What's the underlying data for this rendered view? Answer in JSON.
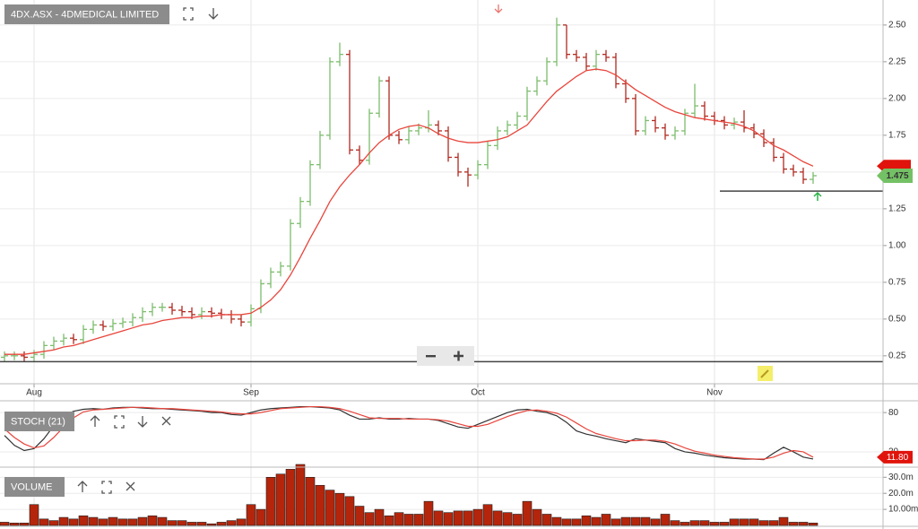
{
  "chart_data": [
    {
      "type": "ohlc",
      "title": "4DX.ASX - 4DMEDICAL LIMITED",
      "categories": [
        null,
        null,
        null,
        "Aug",
        null,
        null,
        null,
        null,
        null,
        null,
        null,
        null,
        null,
        null,
        null,
        null,
        null,
        null,
        null,
        null,
        null,
        null,
        null,
        null,
        null,
        "Sep",
        null,
        null,
        null,
        null,
        null,
        null,
        null,
        null,
        null,
        null,
        null,
        null,
        null,
        null,
        null,
        null,
        null,
        null,
        null,
        null,
        null,
        null,
        "Oct",
        null,
        null,
        null,
        null,
        null,
        null,
        null,
        null,
        null,
        null,
        null,
        null,
        null,
        null,
        null,
        null,
        null,
        null,
        null,
        null,
        null,
        null,
        null,
        "Nov",
        null,
        null,
        null,
        null,
        null,
        null,
        null,
        null,
        null,
        null
      ],
      "open": [
        0.24,
        0.25,
        0.25,
        0.24,
        0.26,
        0.32,
        0.35,
        0.37,
        0.36,
        0.43,
        0.46,
        0.45,
        0.47,
        0.48,
        0.51,
        0.55,
        0.58,
        0.58,
        0.56,
        0.55,
        0.53,
        0.55,
        0.54,
        0.53,
        0.5,
        0.48,
        0.57,
        0.74,
        0.82,
        0.86,
        1.15,
        1.3,
        1.55,
        1.75,
        2.25,
        2.3,
        1.65,
        1.58,
        1.9,
        2.12,
        1.75,
        1.72,
        1.78,
        1.8,
        1.82,
        1.78,
        1.6,
        1.5,
        1.48,
        1.55,
        1.68,
        1.78,
        1.82,
        1.88,
        2.05,
        2.12,
        2.25,
        2.5,
        2.3,
        2.28,
        2.22,
        2.3,
        2.28,
        2.1,
        2.0,
        1.78,
        1.85,
        1.8,
        1.75,
        1.78,
        1.9,
        1.95,
        1.88,
        1.85,
        1.82,
        1.84,
        1.8,
        1.76,
        1.7,
        1.6,
        1.52,
        1.5,
        1.45
      ],
      "high": [
        0.28,
        0.28,
        0.28,
        0.29,
        0.35,
        0.38,
        0.4,
        0.4,
        0.46,
        0.49,
        0.49,
        0.5,
        0.51,
        0.54,
        0.58,
        0.61,
        0.61,
        0.61,
        0.59,
        0.58,
        0.58,
        0.58,
        0.57,
        0.56,
        0.53,
        0.6,
        0.77,
        0.85,
        0.89,
        1.18,
        1.33,
        1.58,
        1.78,
        2.28,
        2.38,
        2.33,
        1.68,
        1.93,
        2.15,
        2.15,
        1.78,
        1.81,
        1.83,
        1.92,
        1.85,
        1.81,
        1.63,
        1.53,
        1.58,
        1.71,
        1.81,
        1.85,
        1.91,
        2.08,
        2.15,
        2.28,
        2.55,
        2.5,
        2.33,
        2.31,
        2.33,
        2.33,
        2.31,
        2.13,
        2.03,
        1.88,
        1.88,
        1.83,
        1.81,
        1.93,
        2.1,
        1.98,
        1.91,
        1.88,
        1.87,
        1.92,
        1.83,
        1.79,
        1.73,
        1.63,
        1.55,
        1.53,
        1.5
      ],
      "low": [
        0.21,
        0.22,
        0.21,
        0.21,
        0.23,
        0.29,
        0.32,
        0.33,
        0.33,
        0.4,
        0.42,
        0.42,
        0.44,
        0.45,
        0.48,
        0.52,
        0.55,
        0.53,
        0.52,
        0.5,
        0.5,
        0.51,
        0.5,
        0.47,
        0.45,
        0.45,
        0.54,
        0.71,
        0.79,
        0.83,
        1.12,
        1.27,
        1.52,
        1.72,
        2.22,
        1.62,
        1.55,
        1.55,
        1.87,
        1.72,
        1.69,
        1.69,
        1.75,
        1.77,
        1.75,
        1.57,
        1.47,
        1.4,
        1.45,
        1.52,
        1.65,
        1.75,
        1.79,
        1.85,
        2.02,
        2.09,
        2.22,
        2.27,
        2.25,
        2.19,
        2.19,
        2.25,
        2.07,
        1.97,
        1.75,
        1.75,
        1.77,
        1.72,
        1.72,
        1.75,
        1.87,
        1.85,
        1.82,
        1.79,
        1.79,
        1.77,
        1.73,
        1.67,
        1.57,
        1.49,
        1.47,
        1.42,
        1.42
      ],
      "close": [
        0.25,
        0.25,
        0.24,
        0.26,
        0.32,
        0.35,
        0.37,
        0.36,
        0.43,
        0.46,
        0.45,
        0.47,
        0.48,
        0.51,
        0.55,
        0.58,
        0.58,
        0.56,
        0.55,
        0.53,
        0.55,
        0.54,
        0.53,
        0.5,
        0.48,
        0.57,
        0.74,
        0.82,
        0.86,
        1.15,
        1.3,
        1.55,
        1.75,
        2.25,
        2.3,
        1.65,
        1.58,
        1.9,
        2.12,
        1.75,
        1.72,
        1.78,
        1.8,
        1.82,
        1.78,
        1.6,
        1.5,
        1.48,
        1.55,
        1.68,
        1.78,
        1.82,
        1.88,
        2.05,
        2.12,
        2.25,
        2.5,
        2.3,
        2.28,
        2.22,
        2.3,
        2.28,
        2.1,
        2.0,
        1.78,
        1.85,
        1.8,
        1.75,
        1.78,
        1.9,
        1.95,
        1.88,
        1.85,
        1.82,
        1.84,
        1.8,
        1.76,
        1.7,
        1.6,
        1.52,
        1.5,
        1.45,
        1.475
      ],
      "up_color": "#7dbd6d",
      "down_color": "#b0281f",
      "ma": {
        "color": "#e8453c",
        "values": [
          0.26,
          0.26,
          0.26,
          0.27,
          0.28,
          0.29,
          0.31,
          0.32,
          0.34,
          0.36,
          0.38,
          0.4,
          0.42,
          0.44,
          0.46,
          0.47,
          0.49,
          0.5,
          0.51,
          0.51,
          0.52,
          0.52,
          0.53,
          0.53,
          0.53,
          0.54,
          0.58,
          0.63,
          0.7,
          0.8,
          0.92,
          1.05,
          1.17,
          1.3,
          1.4,
          1.48,
          1.55,
          1.63,
          1.7,
          1.75,
          1.79,
          1.81,
          1.82,
          1.8,
          1.76,
          1.73,
          1.71,
          1.7,
          1.7,
          1.71,
          1.72,
          1.74,
          1.78,
          1.82,
          1.9,
          1.98,
          2.05,
          2.1,
          2.15,
          2.19,
          2.2,
          2.19,
          2.16,
          2.11,
          2.06,
          2.02,
          1.98,
          1.94,
          1.91,
          1.89,
          1.87,
          1.86,
          1.85,
          1.84,
          1.83,
          1.81,
          1.78,
          1.73,
          1.68,
          1.65,
          1.61,
          1.57,
          1.54
        ]
      },
      "hlines": [
        {
          "value": 0.21,
          "from": 0
        },
        {
          "value": 1.37,
          "from": 73
        }
      ],
      "ylim": [
        0.06,
        2.67
      ],
      "yticks": [
        0.25,
        {
          "value": 0.5,
          "label": "0.50"
        },
        0.75,
        {
          "value": 1,
          "label": "1.00"
        },
        1.25,
        {
          "value": 1.5,
          "label": "1.50"
        },
        1.75,
        {
          "value": 2,
          "label": "2.00"
        },
        2.25,
        {
          "value": 2.5,
          "label": "2.50"
        }
      ],
      "grid": true
    },
    {
      "type": "line",
      "title": "STOCH (21)",
      "series": [
        {
          "color": "#333333",
          "values": [
            45,
            30,
            22,
            25,
            40,
            60,
            75,
            82,
            85,
            86,
            85,
            87,
            88,
            88,
            87,
            86,
            86,
            85,
            84,
            83,
            82,
            80,
            80,
            77,
            76,
            80,
            84,
            86,
            87,
            88,
            89,
            89,
            88,
            87,
            84,
            76,
            70,
            70,
            72,
            70,
            70,
            71,
            70,
            70,
            68,
            63,
            58,
            56,
            62,
            68,
            74,
            80,
            84,
            85,
            82,
            80,
            75,
            65,
            52,
            47,
            44,
            40,
            37,
            34,
            40,
            38,
            36,
            34,
            25,
            20,
            18,
            15,
            13,
            11,
            10,
            9,
            9,
            8,
            18,
            27,
            20,
            12,
            9
          ]
        },
        {
          "color": "#e8453c",
          "values": [
            55,
            42,
            32,
            26,
            29,
            42,
            58,
            72,
            81,
            84,
            85,
            86,
            87,
            88,
            88,
            87,
            86,
            86,
            85,
            84,
            83,
            82,
            81,
            79,
            78,
            78,
            80,
            83,
            86,
            87,
            88,
            89,
            89,
            88,
            86,
            82,
            77,
            72,
            71,
            71,
            71,
            70,
            70,
            70,
            69,
            67,
            63,
            59,
            59,
            62,
            68,
            74,
            79,
            83,
            84,
            82,
            79,
            73,
            64,
            55,
            48,
            44,
            40,
            37,
            37,
            38,
            38,
            36,
            32,
            26,
            21,
            18,
            15,
            13,
            11,
            10,
            9,
            9,
            12,
            18,
            22,
            20,
            11.8
          ]
        }
      ],
      "last_label": "11.80",
      "ylim": [
        -2,
        98
      ],
      "yticks": [
        20,
        80
      ],
      "grid": true
    },
    {
      "type": "bar",
      "title": "VOLUME",
      "color": "#b5250b",
      "values": [
        2,
        1.5,
        1.5,
        13,
        4,
        3,
        5,
        4,
        6,
        5,
        4,
        5,
        4,
        4,
        5,
        6,
        5,
        3,
        3,
        2,
        2,
        1,
        2,
        3,
        4,
        13,
        10,
        30,
        32,
        35,
        38,
        30,
        25,
        22,
        20,
        18,
        12,
        8,
        10,
        6,
        8,
        7,
        7,
        15,
        9,
        8,
        9,
        9,
        10,
        13,
        9,
        8,
        7,
        15,
        10,
        7,
        5,
        4,
        4,
        6,
        5,
        7,
        4,
        5,
        5,
        5,
        4,
        7,
        3,
        2,
        3,
        3,
        2,
        2,
        4,
        4,
        4,
        3,
        3,
        5,
        2,
        2,
        1.5
      ],
      "ylim": [
        0,
        38
      ],
      "yticks": [
        {
          "value": 10,
          "label": "10.00m"
        },
        {
          "value": 20,
          "label": "20.0m"
        },
        {
          "value": 30,
          "label": "30.0m"
        }
      ],
      "grid": true
    }
  ]
}
